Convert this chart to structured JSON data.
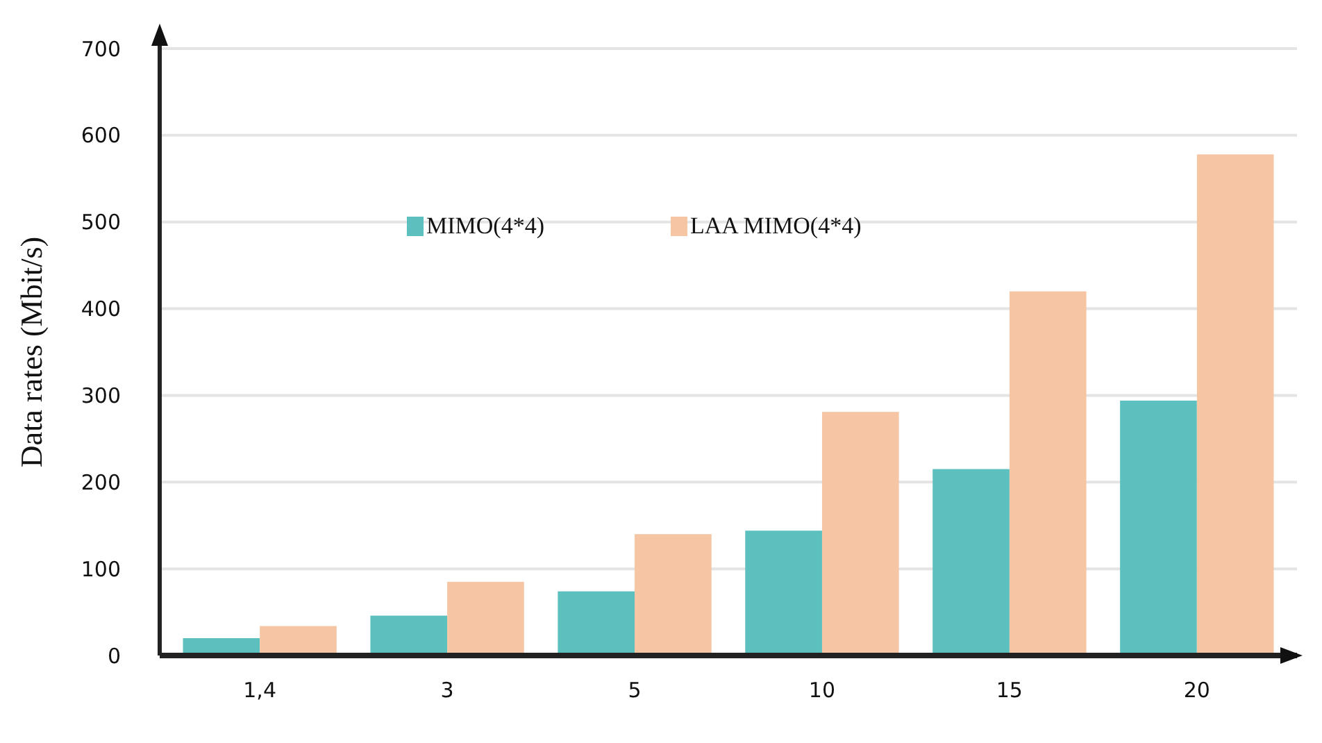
{
  "chart_data": {
    "type": "bar",
    "ylabel": "Data rates (Mbit/s)",
    "categories": [
      "1,4",
      "3",
      "5",
      "10",
      "15",
      "20"
    ],
    "series": [
      {
        "name": "MIMO(4*4)",
        "color": "#5cc0bf",
        "values": [
          20,
          46,
          74,
          144,
          215,
          294
        ]
      },
      {
        "name": "LAA MIMO(4*4)",
        "color": "#f6c6a4",
        "values": [
          34,
          85,
          140,
          281,
          420,
          578
        ]
      }
    ],
    "ylim": [
      0,
      700
    ],
    "yticks": [
      0,
      100,
      200,
      300,
      400,
      500,
      600,
      700
    ],
    "grid": "y",
    "legend": "top"
  }
}
